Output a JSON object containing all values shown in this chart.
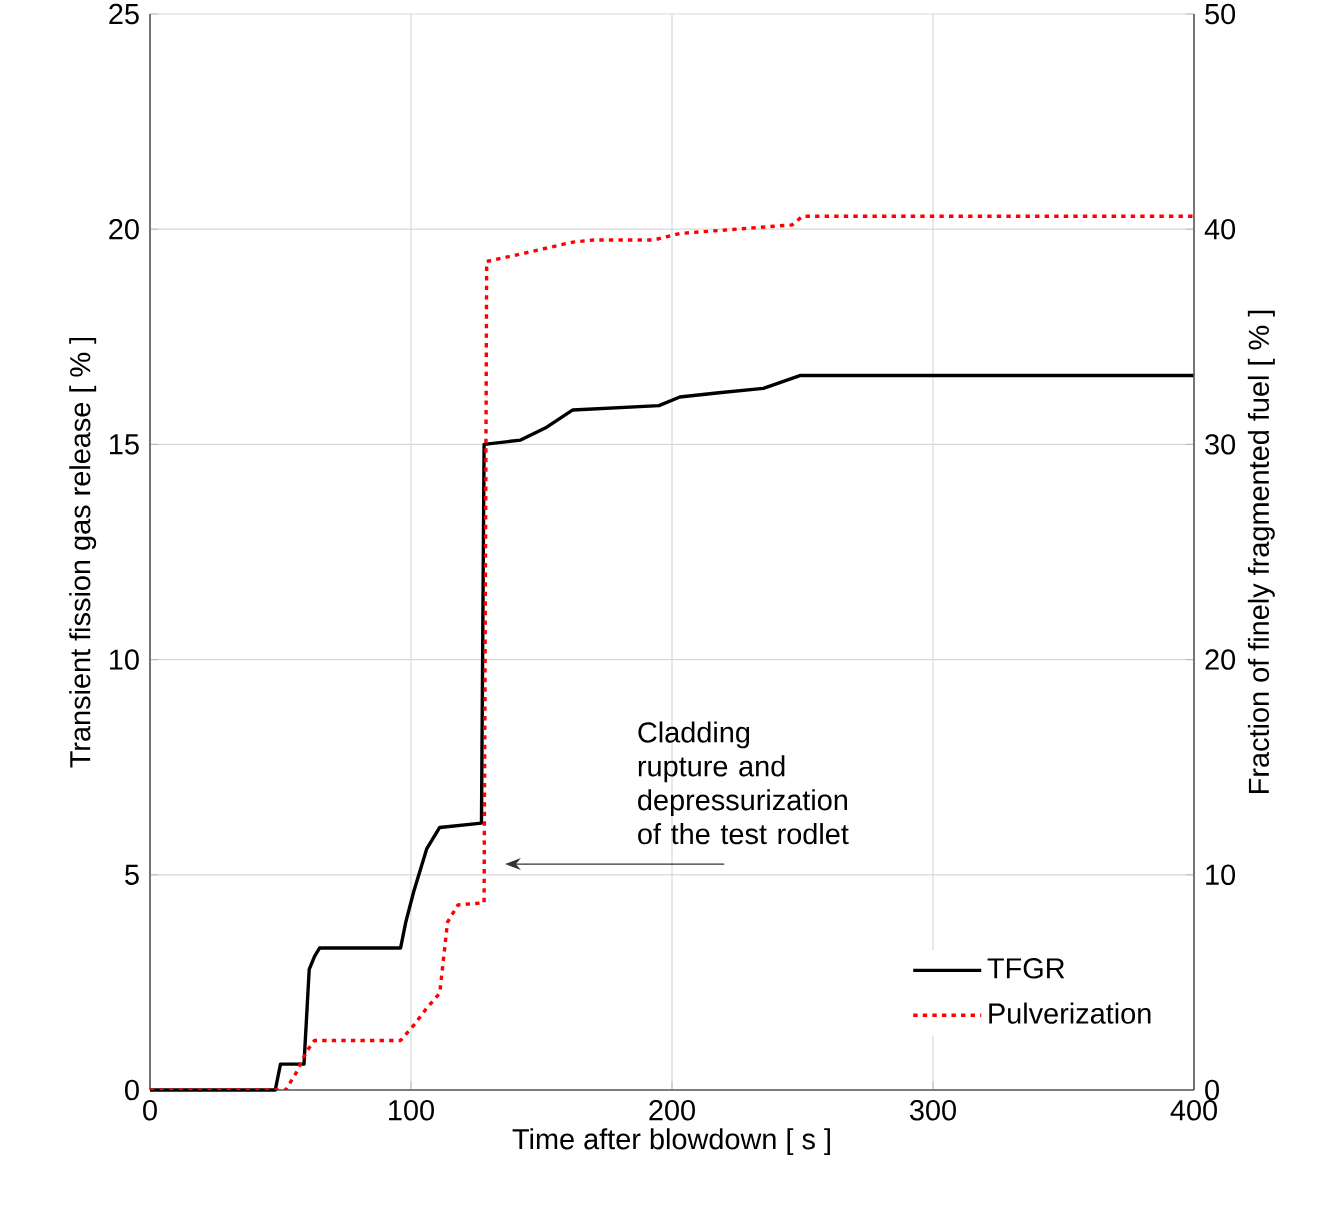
{
  "chart_data": {
    "type": "line",
    "xlabel": "Time after blowdown [ s ]",
    "ylabel": "Transient fission gas release [ % ]",
    "y2label": "Fraction of finely fragmented fuel [ % ]",
    "xlim": [
      0,
      400
    ],
    "xticks": [
      0,
      100,
      200,
      300,
      400
    ],
    "ylim": [
      0,
      25
    ],
    "yticks": [
      0,
      5,
      10,
      15,
      20,
      25
    ],
    "y2lim": [
      0,
      50
    ],
    "y2ticks": [
      0,
      10,
      20,
      30,
      40,
      50
    ],
    "grid": true,
    "legend": "bottom right",
    "annotations": [
      "Cladding rupture and depressurization of the test rodlet"
    ],
    "series": [
      {
        "name": "TFGR",
        "color": "#000000",
        "line_style": "solid",
        "x": [
          0,
          48,
          50,
          59,
          61,
          63,
          65,
          96,
          98,
          101,
          106,
          111,
          127,
          128,
          142,
          152,
          162,
          195,
          203,
          218,
          235,
          249,
          400
        ],
        "values": [
          0,
          0,
          0.6,
          0.6,
          2.8,
          3.1,
          3.3,
          3.3,
          3.9,
          4.6,
          5.6,
          6.1,
          6.2,
          15.0,
          15.1,
          15.4,
          15.8,
          15.9,
          16.1,
          16.2,
          16.3,
          16.6,
          16.6
        ]
      },
      {
        "name": "Pulverization",
        "color": "#ff0000",
        "line_style": "dotted",
        "axis": "y2",
        "x": [
          0,
          52,
          56,
          60,
          63,
          96,
          101,
          106,
          111,
          114,
          118,
          128,
          129,
          144,
          162,
          170,
          193,
          203,
          246,
          250,
          400
        ],
        "values": [
          0,
          0,
          0.8,
          1.8,
          2.3,
          2.3,
          3.0,
          3.8,
          4.5,
          7.8,
          8.6,
          8.7,
          38.5,
          38.9,
          39.4,
          39.5,
          39.5,
          39.8,
          40.2,
          40.6,
          40.6
        ]
      }
    ]
  }
}
